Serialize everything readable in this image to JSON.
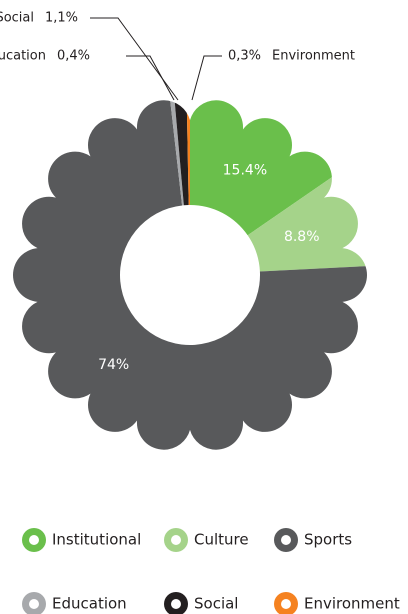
{
  "chart_data": {
    "type": "pie",
    "categories": [
      "Institutional",
      "Culture",
      "Sports",
      "Education",
      "Social",
      "Environment"
    ],
    "values": [
      15.4,
      8.8,
      74,
      0.4,
      1.1,
      0.3
    ],
    "value_labels": [
      "15.4%",
      "8.8%",
      "74%",
      "0,4%",
      "1,1%",
      "0,3%"
    ],
    "colors": [
      "#6abf4b",
      "#a5d38a",
      "#58595b",
      "#a7a9ac",
      "#231f20",
      "#f58220"
    ]
  }
}
